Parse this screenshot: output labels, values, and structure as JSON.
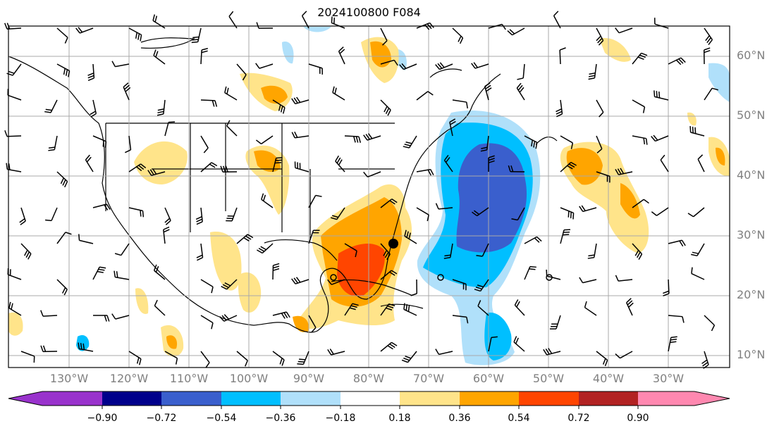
{
  "title": "2024100800 F084",
  "lat_labels": [
    "60°N",
    "50°N",
    "40°N",
    "30°N",
    "20°N",
    "10°N"
  ],
  "lon_labels": [
    "130°W",
    "120°W",
    "110°W",
    "100°W",
    "90°W",
    "80°W",
    "70°W",
    "60°W",
    "50°W",
    "40°W",
    "30°W"
  ],
  "colorbar": {
    "ticks": [
      "−0.90",
      "−0.72",
      "−0.54",
      "−0.36",
      "−0.18",
      "0.18",
      "0.36",
      "0.54",
      "0.72",
      "0.90"
    ],
    "colors": [
      "#9932cc",
      "#00008b",
      "#3a5fcd",
      "#00bfff",
      "#b0e0fa",
      "#ffffff",
      "#ffe48a",
      "#ffa500",
      "#ff4500",
      "#b22222",
      "#ff88b0"
    ]
  },
  "colors": {
    "grid": "#a9a9a9",
    "coast": "#000000",
    "label": "#808080"
  },
  "map": {
    "lat_range": [
      8,
      65
    ],
    "lon_range": [
      -135,
      -23
    ]
  }
}
